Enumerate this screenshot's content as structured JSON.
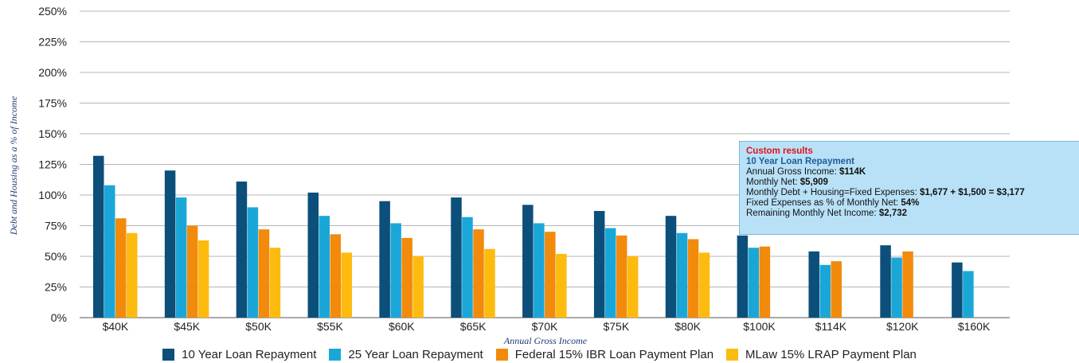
{
  "chart_data": {
    "type": "bar",
    "xlabel": "Annual Gross Income",
    "ylabel": "Debt and Housing as a % of Income",
    "ylim": [
      0,
      250
    ],
    "yticks": [
      0,
      25,
      50,
      75,
      100,
      125,
      150,
      175,
      200,
      225,
      250
    ],
    "ytick_labels": [
      "0%",
      "25%",
      "50%",
      "75%",
      "100%",
      "125%",
      "150%",
      "175%",
      "200%",
      "225%",
      "250%"
    ],
    "grid": true,
    "legend_position": "bottom",
    "categories": [
      "$40K",
      "$45K",
      "$50K",
      "$55K",
      "$60K",
      "$65K",
      "$70K",
      "$75K",
      "$80K",
      "$100K",
      "$114K",
      "$120K",
      "$160K"
    ],
    "series": [
      {
        "name": "10 Year Loan Repayment",
        "color": "#0b4f7a",
        "values": [
          132,
          120,
          111,
          102,
          95,
          98,
          92,
          87,
          83,
          67,
          54,
          59,
          45
        ]
      },
      {
        "name": "25 Year Loan Repayment",
        "color": "#1aa7d8",
        "values": [
          108,
          98,
          90,
          83,
          77,
          82,
          77,
          73,
          69,
          57,
          43,
          49,
          38
        ]
      },
      {
        "name": "Federal 15% IBR Loan Payment Plan",
        "color": "#f28a0c",
        "values": [
          81,
          75,
          72,
          68,
          65,
          72,
          70,
          67,
          64,
          58,
          46,
          54,
          null
        ]
      },
      {
        "name": "MLaw 15% LRAP Payment Plan",
        "color": "#fdbb10",
        "values": [
          69,
          63,
          57,
          53,
          50,
          56,
          52,
          50,
          53,
          null,
          null,
          null,
          null
        ]
      }
    ]
  },
  "tooltip": {
    "title": "Custom results",
    "subtitle": "10 Year Loan Repayment",
    "gross_label": "Annual Gross Income: ",
    "gross_value": "$114K",
    "net_label": "Monthly Net: ",
    "net_value": "$5,909",
    "fixed_label": "Monthly Debt + Housing=Fixed Expenses: ",
    "fixed_value": "$1,677 + $1,500 = $3,177",
    "pct_label": "Fixed Expenses as % of Monthly Net: ",
    "pct_value": "54%",
    "remaining_label": "Remaining Monthly Net Income: ",
    "remaining_value": "$2,732"
  }
}
